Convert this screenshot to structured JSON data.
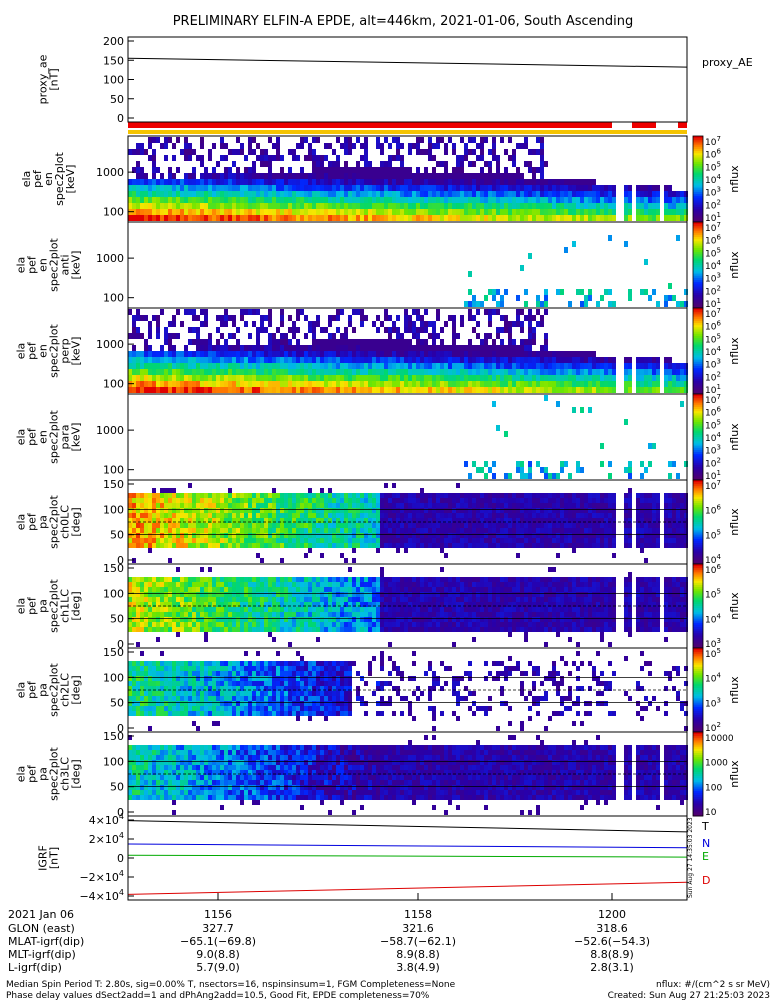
{
  "title": "PRELIMINARY ELFIN-A EPDE, alt=446km, 2021-01-06, South Ascending",
  "colors": {
    "flag_red": "#ee0000",
    "flag_yellow": "#f5c400",
    "line_T": "#000000",
    "line_N": "#0000dd",
    "line_E": "#00aa00",
    "line_D": "#dd0000"
  },
  "panels": [
    {
      "id": "proxy_ae",
      "ylabel_lines": [
        "proxy_ae",
        "[nT]"
      ],
      "yticks": [
        "200",
        "150",
        "100",
        "50",
        "0"
      ],
      "legend": "proxy_AE"
    },
    {
      "id": "en_spec",
      "ylabel_lines": [
        "ela",
        "pef",
        "en",
        "spec2plot",
        "[keV]"
      ],
      "yticks": [
        "1000",
        "100"
      ],
      "colorbar": {
        "label": "nflux",
        "ticks": [
          "10",
          "10",
          "10",
          "10",
          "10",
          "10",
          "10"
        ],
        "exps": [
          "7",
          "6",
          "5",
          "4",
          "3",
          "2",
          "1"
        ]
      }
    },
    {
      "id": "anti_spec",
      "ylabel_lines": [
        "ela",
        "pef",
        "en",
        "spec2plot",
        "anti",
        "[keV]"
      ],
      "yticks": [
        "1000",
        "100"
      ],
      "colorbar": {
        "label": "nflux",
        "ticks": [
          "10",
          "10",
          "10",
          "10",
          "10",
          "10",
          "10"
        ],
        "exps": [
          "7",
          "6",
          "5",
          "4",
          "3",
          "2",
          "1"
        ]
      }
    },
    {
      "id": "perp_spec",
      "ylabel_lines": [
        "ela",
        "pef",
        "en",
        "spec2plot",
        "perp",
        "[keV]"
      ],
      "yticks": [
        "1000",
        "100"
      ],
      "colorbar": {
        "label": "nflux",
        "ticks": [
          "10",
          "10",
          "10",
          "10",
          "10",
          "10",
          "10"
        ],
        "exps": [
          "7",
          "6",
          "5",
          "4",
          "3",
          "2",
          "1"
        ]
      }
    },
    {
      "id": "para_spec",
      "ylabel_lines": [
        "ela",
        "pef",
        "en",
        "spec2plot",
        "para",
        "[keV]"
      ],
      "yticks": [
        "1000",
        "100"
      ],
      "colorbar": {
        "label": "nflux",
        "ticks": [
          "10",
          "10",
          "10",
          "10",
          "10",
          "10",
          "10"
        ],
        "exps": [
          "7",
          "6",
          "5",
          "4",
          "3",
          "2",
          "1"
        ]
      }
    },
    {
      "id": "ch0lc",
      "ylabel_lines": [
        "ela",
        "pef",
        "pa",
        "spec2plot",
        "ch0LC",
        "[deg]"
      ],
      "yticks": [
        "150",
        "100",
        "50",
        "0"
      ],
      "colorbar": {
        "label": "nflux",
        "ticks": [
          "10",
          "10",
          "10",
          "10"
        ],
        "exps": [
          "7",
          "6",
          "5",
          "4"
        ]
      }
    },
    {
      "id": "ch1lc",
      "ylabel_lines": [
        "ela",
        "pef",
        "pa",
        "spec2plot",
        "ch1LC",
        "[deg]"
      ],
      "yticks": [
        "150",
        "100",
        "50",
        "0"
      ],
      "colorbar": {
        "label": "nflux",
        "ticks": [
          "10",
          "10",
          "10",
          "10"
        ],
        "exps": [
          "6",
          "5",
          "4",
          "3"
        ]
      }
    },
    {
      "id": "ch2lc",
      "ylabel_lines": [
        "ela",
        "pef",
        "pa",
        "spec2plot",
        "ch2LC",
        "[deg]"
      ],
      "yticks": [
        "150",
        "100",
        "50",
        "0"
      ],
      "colorbar": {
        "label": "nflux",
        "ticks": [
          "10",
          "10",
          "10",
          "10"
        ],
        "exps": [
          "5",
          "4",
          "3",
          "2"
        ]
      }
    },
    {
      "id": "ch3lc",
      "ylabel_lines": [
        "ela",
        "pef",
        "pa",
        "spec2plot",
        "ch3LC",
        "[deg]"
      ],
      "yticks": [
        "150",
        "100",
        "50",
        "0"
      ],
      "colorbar": {
        "label": "nflux",
        "ticks": [
          "10000",
          "1000",
          "100",
          "10"
        ],
        "exps": [
          "",
          "",
          "",
          ""
        ]
      }
    },
    {
      "id": "igrf",
      "ylabel_lines": [
        "IGRF",
        "[nT]"
      ],
      "yticks": [
        "4×10",
        "2×10",
        "0",
        "−2×10",
        "−4×10"
      ],
      "ytick_exps": [
        "4",
        "4",
        "",
        "4",
        "4"
      ],
      "legend": [
        "T",
        "N",
        "E",
        "D"
      ],
      "stamp": "Sun Aug 27 14:35:03 2023"
    }
  ],
  "chart_data": [
    {
      "type": "line",
      "title": "PRELIMINARY ELFIN-A EPDE, alt=446km, 2021-01-06, South Ascending",
      "ylabel": "proxy_ae [nT]",
      "ylim": [
        -10,
        210
      ],
      "series": [
        {
          "name": "proxy_AE",
          "x": [
            0,
            1
          ],
          "values": [
            155,
            132
          ]
        }
      ]
    },
    {
      "type": "line",
      "ylabel": "IGRF [nT]",
      "ylim": [
        -45000,
        45000
      ],
      "series": [
        {
          "name": "T",
          "x": [
            0,
            1
          ],
          "values": [
            40000,
            28000
          ]
        },
        {
          "name": "N",
          "x": [
            0,
            1
          ],
          "values": [
            15000,
            11000
          ]
        },
        {
          "name": "E",
          "x": [
            0,
            1
          ],
          "values": [
            3000,
            1000
          ]
        },
        {
          "name": "D",
          "x": [
            0,
            1
          ],
          "values": [
            -39000,
            -26000
          ]
        }
      ]
    }
  ],
  "xaxis": {
    "row_labels": [
      "2021 Jan 06",
      "GLON (east)",
      "MLAT-igrf(dip)",
      "MLT-igrf(dip)",
      "L-igrf(dip)"
    ],
    "columns": [
      {
        "time": "1156",
        "glon": "327.7",
        "mlat": "−65.1(−69.8)",
        "mlt": "9.0(8.8)",
        "l": "5.7(9.0)"
      },
      {
        "time": "1158",
        "glon": "321.6",
        "mlat": "−58.7(−62.1)",
        "mlt": "8.9(8.8)",
        "l": "3.8(4.9)"
      },
      {
        "time": "1200",
        "glon": "318.6",
        "mlat": "−52.6(−54.3)",
        "mlt": "8.8(8.9)",
        "l": "2.8(3.1)"
      }
    ]
  },
  "footer": {
    "left1": "Median Spin Period T: 2.80s, sig=0.00% T, nsectors=16, nspinsinsum=1, FGM Completeness=None",
    "left2": "Phase delay values dSect2add=1 and dPhAng2add=10.5, Good Fit, EPDE completeness=70%",
    "right1": "nflux: #/(cm^2 s sr MeV)",
    "right2": "Created: Sun Aug 27 21:25:03 2023"
  }
}
